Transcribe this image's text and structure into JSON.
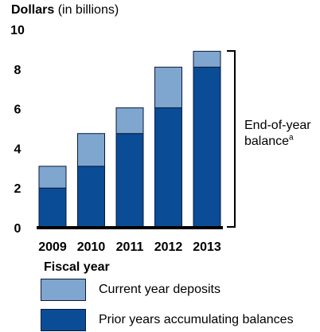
{
  "chart_data": {
    "type": "bar",
    "stacked": true,
    "ytitle_bold": "Dollars",
    "ytitle_rest": " (in billions)",
    "xlabel": "Fiscal year",
    "categories": [
      "2009",
      "2010",
      "2011",
      "2012",
      "2013"
    ],
    "ylim": [
      0,
      10
    ],
    "yticks": [
      0,
      2,
      4,
      6,
      8,
      10
    ],
    "series": [
      {
        "name": "Prior years accumulating balances",
        "color": "#0a4d96",
        "values": [
          2.0,
          3.1,
          4.75,
          6.05,
          8.1
        ]
      },
      {
        "name": "Current year deposits",
        "color": "#7fa6ce",
        "values": [
          1.1,
          1.65,
          1.3,
          2.05,
          0.8
        ]
      }
    ],
    "annotation": {
      "text": "End-of-year balance",
      "superscript": "a"
    },
    "grid": false,
    "legend_position": "bottom"
  }
}
